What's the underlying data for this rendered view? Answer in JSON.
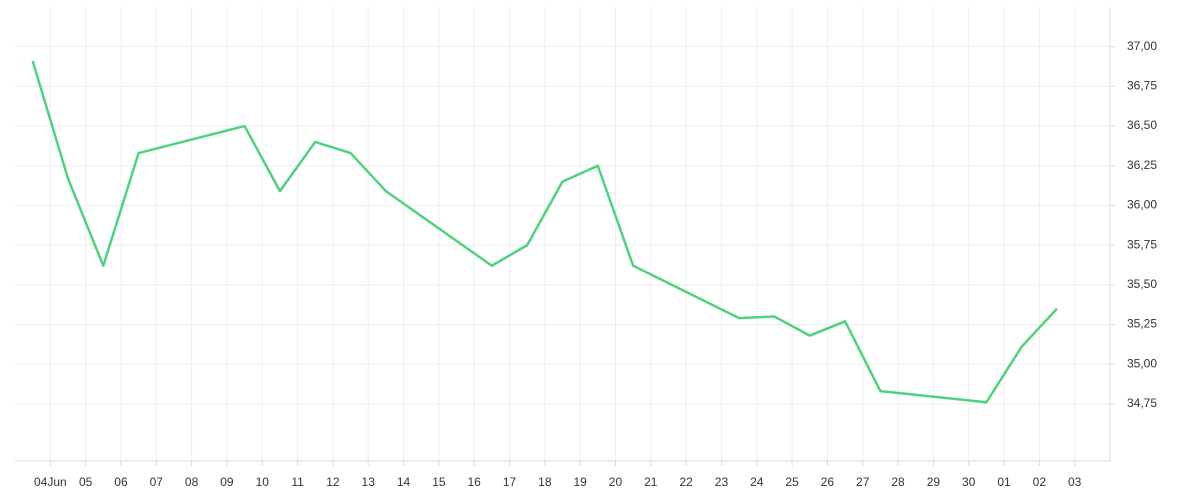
{
  "chart_data": {
    "type": "line",
    "x": [
      3.5,
      4.5,
      5.5,
      6.5,
      9.5,
      10.5,
      11.5,
      12.5,
      13.5,
      16.5,
      17.5,
      18.5,
      19.5,
      20.5,
      23.5,
      24.5,
      25.5,
      26.5,
      27.5,
      30.5,
      31.5,
      32.5
    ],
    "series": [
      {
        "color": "#4fd27e",
        "values": [
          36.91,
          36.17,
          35.62,
          36.33,
          36.5,
          36.09,
          36.4,
          36.33,
          36.09,
          35.62,
          35.75,
          36.15,
          36.25,
          35.62,
          35.29,
          35.3,
          35.18,
          35.27,
          34.83,
          34.76,
          35.11,
          35.35
        ]
      }
    ],
    "xlim": [
      3,
      34
    ],
    "xticks": [
      {
        "value": 4,
        "label": "04Jun"
      },
      {
        "value": 5,
        "label": "05"
      },
      {
        "value": 6,
        "label": "06"
      },
      {
        "value": 7,
        "label": "07"
      },
      {
        "value": 8,
        "label": "08"
      },
      {
        "value": 9,
        "label": "09"
      },
      10,
      11,
      12,
      13,
      14,
      15,
      16,
      17,
      18,
      19,
      20,
      21,
      22,
      23,
      24,
      25,
      26,
      27,
      28,
      29,
      30,
      {
        "value": 31,
        "label": "01"
      },
      {
        "value": 32,
        "label": "02"
      },
      {
        "value": 33,
        "label": "03"
      }
    ],
    "ylim": [
      34.39,
      37.25
    ],
    "yticks": [
      {
        "value": 34.75,
        "label": "34,75"
      },
      {
        "value": 35,
        "label": "35,00"
      },
      {
        "value": 35.25,
        "label": "35,25"
      },
      {
        "value": 35.5,
        "label": "35,50"
      },
      {
        "value": 35.75,
        "label": "35,75"
      },
      {
        "value": 36,
        "label": "36,00"
      },
      {
        "value": 36.25,
        "label": "36,25"
      },
      {
        "value": 36.5,
        "label": "36,50"
      },
      {
        "value": 36.75,
        "label": "36,75"
      },
      {
        "value": 37,
        "label": "37,00"
      }
    ],
    "grid": true
  }
}
